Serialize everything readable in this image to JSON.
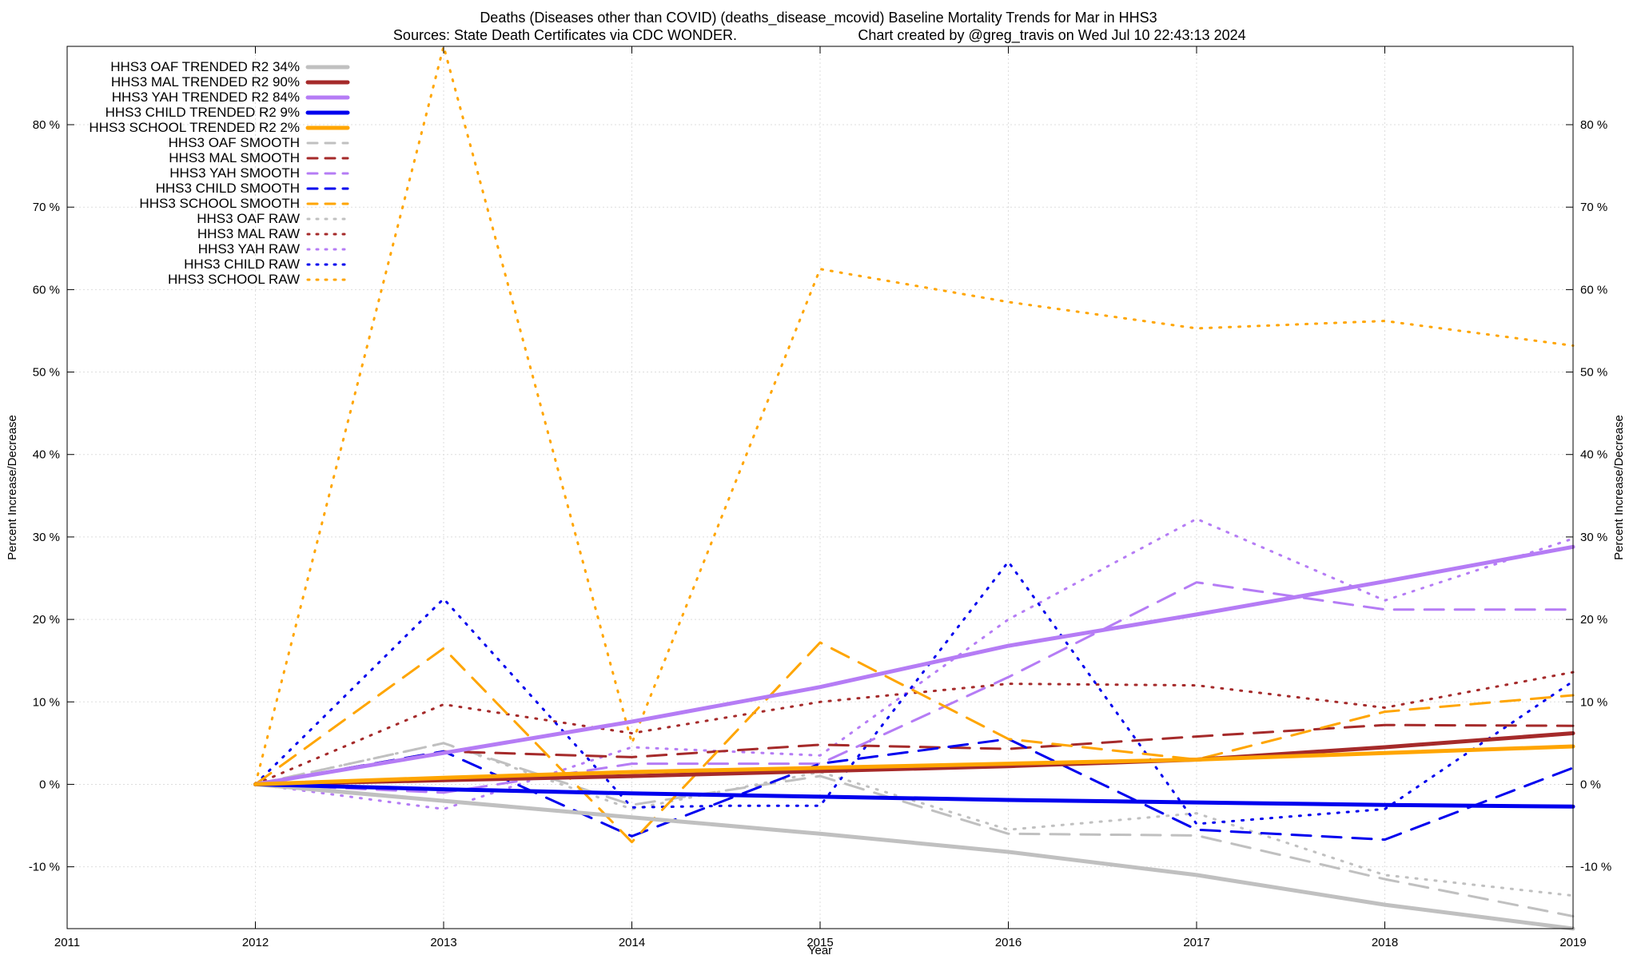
{
  "chart_data": {
    "type": "line",
    "title_line1": "Deaths (Diseases other than COVID) (deaths_disease_mcovid)  Baseline Mortality Trends for Mar in HHS3",
    "title_line2_left": "Sources: State Death Certificates via CDC WONDER.",
    "title_line2_right": "Chart created by @greg_travis on Wed Jul 10 22:43:13 2024",
    "xlabel": "Year",
    "ylabel_left": "Percent Increase/Decrease",
    "ylabel_right": "Percent Increase/Decrease",
    "xlim": [
      2011,
      2019
    ],
    "ylim": [
      -17.5,
      89.5
    ],
    "x_ticks": [
      2011,
      2012,
      2013,
      2014,
      2015,
      2016,
      2017,
      2018,
      2019
    ],
    "x_tick_labels": [
      "2011",
      "2012",
      "2013",
      "2014",
      "2015",
      "2016",
      "2017",
      "2018",
      "2019"
    ],
    "y_ticks": [
      -10,
      0,
      10,
      20,
      30,
      40,
      50,
      60,
      70,
      80
    ],
    "y_tick_labels": [
      "-10 %",
      "0 %",
      "10 %",
      "20 %",
      "30 %",
      "40 %",
      "50 %",
      "60 %",
      "70 %",
      "80 %"
    ],
    "grid": true,
    "legend_position": "top-left",
    "x": [
      2012,
      2013,
      2014,
      2015,
      2016,
      2017,
      2018,
      2019
    ],
    "series": [
      {
        "name": "HHS3 OAF TRENDED R2  34%",
        "style": "trend",
        "color": "#c0c0c0",
        "x": [
          2012,
          2013,
          2014,
          2015,
          2016,
          2017,
          2018,
          2019
        ],
        "values": [
          0,
          -2.0,
          -4.0,
          -6.0,
          -8.2,
          -11.0,
          -14.6,
          -17.5
        ]
      },
      {
        "name": "HHS3 MAL TRENDED R2  90%",
        "style": "trend",
        "color": "#a52a2a",
        "x": [
          2012,
          2013,
          2014,
          2015,
          2016,
          2017,
          2018,
          2019
        ],
        "values": [
          0,
          0.5,
          1.0,
          1.6,
          2.2,
          3.0,
          4.5,
          6.2
        ]
      },
      {
        "name": "HHS3 YAH TRENDED R2  84%",
        "style": "trend",
        "color": "#b57cf5",
        "x": [
          2012,
          2013,
          2014,
          2015,
          2016,
          2017,
          2018,
          2019
        ],
        "values": [
          0,
          3.8,
          7.6,
          11.8,
          16.8,
          20.6,
          24.6,
          28.8
        ]
      },
      {
        "name": "HHS3 CHILD TRENDED R2   9%",
        "style": "trend",
        "color": "#0000ee",
        "x": [
          2012,
          2013,
          2014,
          2015,
          2016,
          2017,
          2018,
          2019
        ],
        "values": [
          0,
          -0.6,
          -1.1,
          -1.5,
          -1.9,
          -2.2,
          -2.5,
          -2.7
        ]
      },
      {
        "name": "HHS3 SCHOOL TRENDED R2   2%",
        "style": "trend",
        "color": "#ffa500",
        "x": [
          2012,
          2013,
          2014,
          2015,
          2016,
          2017,
          2018,
          2019
        ],
        "values": [
          0,
          0.8,
          1.5,
          2.0,
          2.5,
          3.0,
          3.8,
          4.6
        ]
      },
      {
        "name": "HHS3 OAF SMOOTH",
        "style": "smooth",
        "color": "#c0c0c0",
        "x": [
          2012,
          2013,
          2014,
          2015,
          2016,
          2017,
          2018,
          2019
        ],
        "values": [
          0,
          5.0,
          -2.5,
          1.0,
          -6.0,
          -6.2,
          -11.5,
          -16.0
        ]
      },
      {
        "name": "HHS3 MAL SMOOTH",
        "style": "smooth",
        "color": "#a52a2a",
        "x": [
          2012,
          2013,
          2014,
          2015,
          2016,
          2017,
          2018,
          2019
        ],
        "values": [
          0,
          4.0,
          3.3,
          4.8,
          4.3,
          5.8,
          7.2,
          7.1
        ]
      },
      {
        "name": "HHS3 YAH SMOOTH",
        "style": "smooth",
        "color": "#b57cf5",
        "x": [
          2012,
          2013,
          2014,
          2015,
          2016,
          2017,
          2018,
          2019
        ],
        "values": [
          0,
          -1.0,
          2.5,
          2.5,
          13.0,
          24.5,
          21.2,
          21.2
        ]
      },
      {
        "name": "HHS3 CHILD SMOOTH",
        "style": "smooth",
        "color": "#0000ee",
        "x": [
          2012,
          2013,
          2014,
          2015,
          2016,
          2017,
          2018,
          2019
        ],
        "values": [
          0,
          4.0,
          -6.3,
          2.5,
          5.5,
          -5.5,
          -6.7,
          2.0
        ]
      },
      {
        "name": "HHS3 SCHOOL SMOOTH",
        "style": "smooth",
        "color": "#ffa500",
        "x": [
          2012,
          2013,
          2014,
          2015,
          2016,
          2017,
          2018,
          2019
        ],
        "values": [
          0,
          16.5,
          -7.0,
          17.2,
          5.5,
          3.0,
          8.8,
          10.8
        ]
      },
      {
        "name": "HHS3 OAF RAW",
        "style": "raw",
        "color": "#c0c0c0",
        "x": [
          2012,
          2013,
          2014,
          2015,
          2016,
          2017,
          2018,
          2019
        ],
        "values": [
          0,
          5.0,
          -3.0,
          1.5,
          -5.5,
          -3.5,
          -11.0,
          -13.5
        ]
      },
      {
        "name": "HHS3 MAL RAW",
        "style": "raw",
        "color": "#a52a2a",
        "x": [
          2012,
          2013,
          2014,
          2015,
          2016,
          2017,
          2018,
          2019
        ],
        "values": [
          0,
          9.7,
          6.2,
          10.0,
          12.2,
          12.0,
          9.3,
          13.6
        ]
      },
      {
        "name": "HHS3 YAH RAW",
        "style": "raw",
        "color": "#b57cf5",
        "x": [
          2012,
          2013,
          2014,
          2015,
          2016,
          2017,
          2018,
          2019
        ],
        "values": [
          0,
          -3.0,
          4.5,
          3.5,
          20.0,
          32.2,
          22.3,
          29.8
        ]
      },
      {
        "name": "HHS3 CHILD RAW",
        "style": "raw",
        "color": "#0000ee",
        "x": [
          2012,
          2013,
          2014,
          2014.5,
          2015,
          2016,
          2017,
          2018,
          2019
        ],
        "values": [
          0,
          22.5,
          -2.8,
          -2.6,
          -2.6,
          27.0,
          -4.8,
          -3.0,
          12.5
        ]
      },
      {
        "name": "HHS3 SCHOOL RAW",
        "style": "raw",
        "color": "#ffa500",
        "x": [
          2012,
          2013,
          2014,
          2015,
          2016,
          2017,
          2018,
          2019
        ],
        "values": [
          0,
          89.5,
          5.0,
          62.5,
          58.5,
          55.3,
          56.2,
          53.2
        ]
      }
    ]
  }
}
